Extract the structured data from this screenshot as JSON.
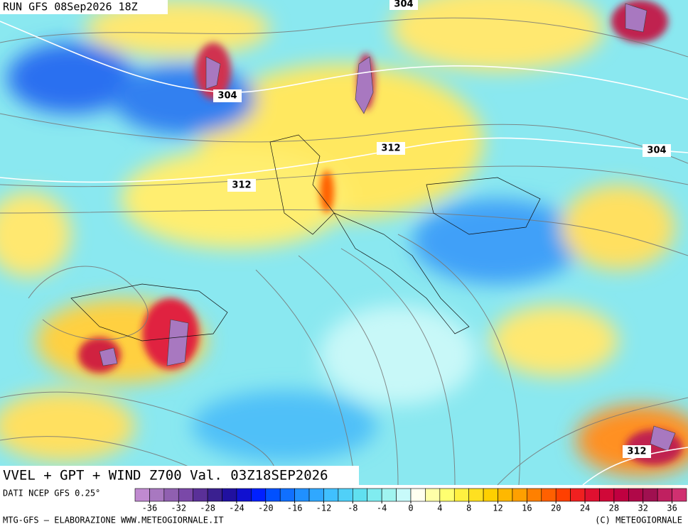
{
  "header": {
    "run": "RUN GFS 08Sep2026 18Z"
  },
  "map": {
    "title": "VVEL + GPT + WIND Z700 Val. 03Z18SEP2026",
    "contour_labels": [
      304,
      304,
      304,
      312,
      312,
      312
    ]
  },
  "footer": {
    "source": "DATI NCEP GFS 0.25°",
    "credit": "MTG-GFS — ELABORAZIONE WWW.METEOGIORNALE.IT",
    "copyright": "(C) METEOGIORNALE"
  },
  "colorbar": {
    "ticks": [
      -36,
      -32,
      -28,
      -24,
      -20,
      -16,
      -12,
      -8,
      -4,
      0,
      4,
      8,
      12,
      16,
      20,
      24,
      28,
      32,
      36
    ],
    "colors": [
      "#c08ad0",
      "#a878c0",
      "#9060b0",
      "#7a48a8",
      "#5a3098",
      "#3a2090",
      "#2010a0",
      "#1010d0",
      "#0020ff",
      "#0050ff",
      "#1070ff",
      "#2090ff",
      "#30a8ff",
      "#40c0ff",
      "#50d0f8",
      "#60e0f0",
      "#80ecf0",
      "#a0f4f0",
      "#c8fafa",
      "#fffff0",
      "#ffffa8",
      "#ffff70",
      "#fff040",
      "#ffe020",
      "#ffd000",
      "#ffb800",
      "#ffa000",
      "#ff8000",
      "#ff6000",
      "#ff4000",
      "#f02020",
      "#e01030",
      "#d00838",
      "#c00040",
      "#b00848",
      "#a01050",
      "#c02060",
      "#d03070"
    ]
  }
}
